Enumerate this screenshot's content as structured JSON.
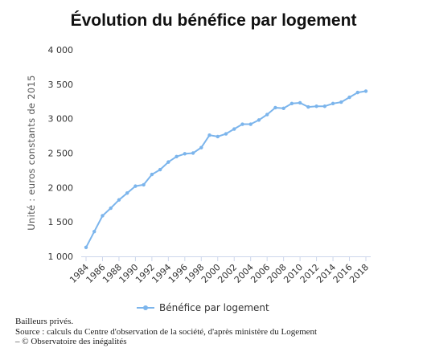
{
  "chart_data": {
    "type": "line",
    "title": "Évolution du bénéfice par logement",
    "xlabel": "",
    "ylabel": "Unité : euros constants de 2015",
    "ylim": [
      1000,
      4000
    ],
    "yticks": [
      1000,
      1500,
      2000,
      2500,
      3000,
      3500,
      4000
    ],
    "ytick_labels": [
      "1 000",
      "1 500",
      "2 000",
      "2 500",
      "3 000",
      "3 500",
      "4 000"
    ],
    "xticks": [
      "1984",
      "1986",
      "1988",
      "1990",
      "1992",
      "1994",
      "1996",
      "1998",
      "2000",
      "2002",
      "2004",
      "2006",
      "2008",
      "2010",
      "2012",
      "2014",
      "2016",
      "2018"
    ],
    "x": [
      1984,
      1985,
      1986,
      1987,
      1988,
      1989,
      1990,
      1991,
      1992,
      1993,
      1994,
      1995,
      1996,
      1997,
      1998,
      1999,
      2000,
      2001,
      2002,
      2003,
      2004,
      2005,
      2006,
      2007,
      2008,
      2009,
      2010,
      2011,
      2012,
      2013,
      2014,
      2015,
      2016,
      2017,
      2018
    ],
    "series": [
      {
        "name": "Bénéfice par logement",
        "color": "#7cb5ec",
        "values": [
          1130,
          1360,
          1590,
          1700,
          1820,
          1920,
          2020,
          2040,
          2190,
          2260,
          2370,
          2450,
          2490,
          2500,
          2580,
          2760,
          2740,
          2780,
          2850,
          2920,
          2920,
          2980,
          3060,
          3160,
          3150,
          3220,
          3230,
          3170,
          3180,
          3180,
          3220,
          3240,
          3310,
          3380,
          3400
        ]
      }
    ],
    "grid": false,
    "legend_position": "bottom"
  },
  "notes": {
    "line1": "Bailleurs privés.",
    "line2": "Source : calculs du Centre d'observation de la société, d'après ministère du Logement",
    "line3": "– © Observatoire des inégalités"
  }
}
